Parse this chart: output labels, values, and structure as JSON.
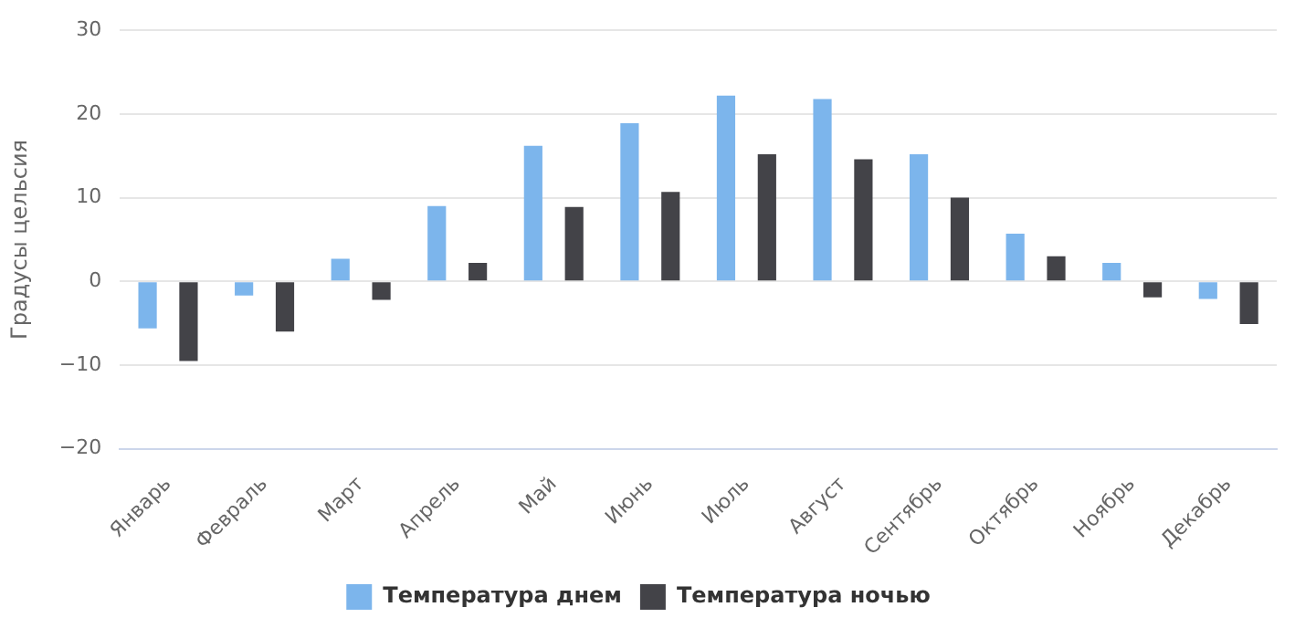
{
  "chart_data": {
    "type": "bar",
    "ylabel": "Градусы цельсия",
    "categories": [
      "Январь",
      "Февраль",
      "Март",
      "Апрель",
      "Май",
      "Июнь",
      "Июль",
      "Август",
      "Сентябрь",
      "Октябрь",
      "Ноябрь",
      "Декабрь"
    ],
    "series": [
      {
        "name": "Температура днем",
        "color": "#7cb5ec",
        "values": [
          -5.6,
          -1.7,
          2.7,
          9.0,
          16.2,
          18.9,
          22.2,
          21.8,
          15.2,
          5.7,
          2.2,
          -2.1
        ]
      },
      {
        "name": "Температура ночью",
        "color": "#434348",
        "values": [
          -9.5,
          -6.0,
          -2.2,
          2.2,
          8.9,
          10.7,
          15.2,
          14.6,
          10.0,
          3.0,
          -1.9,
          -5.1
        ]
      }
    ],
    "ylim": [
      -20,
      30
    ],
    "yticks": [
      -20,
      -10,
      0,
      10,
      20,
      30
    ],
    "grid": "y",
    "legend": "bottom"
  }
}
